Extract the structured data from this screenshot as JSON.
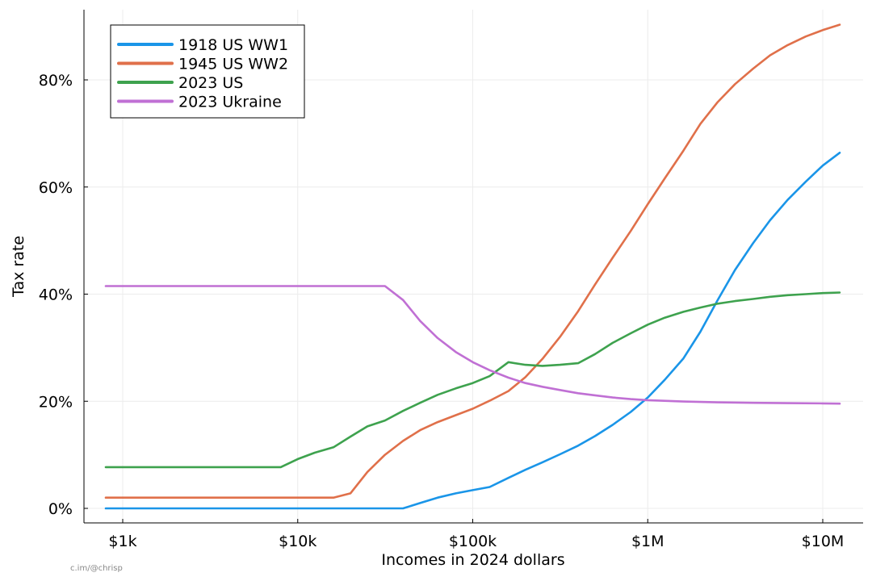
{
  "chart_data": {
    "type": "line",
    "xlabel": "Incomes in 2024 dollars",
    "ylabel": "Tax rate",
    "x_scale": "log",
    "xlim": [
      610,
      15000000
    ],
    "ylim": [
      -2.5,
      93
    ],
    "x_ticks": [
      {
        "value": 1000,
        "label": "$1k"
      },
      {
        "value": 10000,
        "label": "$10k"
      },
      {
        "value": 100000,
        "label": "$100k"
      },
      {
        "value": 1000000,
        "label": "$1M"
      },
      {
        "value": 10000000,
        "label": "$10M"
      }
    ],
    "y_ticks": [
      {
        "value": 0,
        "label": "0%"
      },
      {
        "value": 20,
        "label": "20%"
      },
      {
        "value": 40,
        "label": "40%"
      },
      {
        "value": 60,
        "label": "60%"
      },
      {
        "value": 80,
        "label": "80%"
      }
    ],
    "grid": true,
    "legend_position": "top-left",
    "series": [
      {
        "name": "1918 US WW1",
        "color": "#1a95e8",
        "x": [
          800,
          10000,
          20000,
          40000,
          50000,
          63000,
          80000,
          100000,
          125000,
          160000,
          200000,
          250000,
          315000,
          400000,
          500000,
          630000,
          800000,
          1000000,
          1250000,
          1600000,
          2000000,
          2500000,
          3150000,
          4000000,
          5000000,
          6300000,
          8000000,
          10000000,
          12500000
        ],
        "y": [
          0,
          0,
          0,
          0,
          1,
          2,
          2.8,
          3.4,
          4,
          5.7,
          7.2,
          8.6,
          10.1,
          11.7,
          13.5,
          15.6,
          18,
          20.7,
          24,
          28,
          33,
          38.8,
          44.5,
          49.5,
          53.8,
          57.6,
          61,
          64,
          66.4
        ]
      },
      {
        "name": "1945 US WW2",
        "color": "#e0704a",
        "x": [
          800,
          10000,
          16000,
          20000,
          25000,
          31500,
          40000,
          50000,
          63000,
          80000,
          100000,
          125000,
          160000,
          200000,
          250000,
          315000,
          400000,
          500000,
          630000,
          800000,
          1000000,
          1250000,
          1600000,
          2000000,
          2500000,
          3150000,
          4000000,
          5000000,
          6300000,
          8000000,
          10000000,
          12500000
        ],
        "y": [
          2,
          2,
          2,
          2.8,
          6.8,
          10,
          12.6,
          14.6,
          16.1,
          17.4,
          18.6,
          20.1,
          21.9,
          24.5,
          27.9,
          32,
          36.8,
          41.8,
          46.8,
          51.8,
          56.8,
          61.6,
          66.8,
          71.8,
          75.8,
          79.2,
          82.1,
          84.6,
          86.5,
          88.1,
          89.3,
          90.3
        ]
      },
      {
        "name": "2023 US",
        "color": "#3ea24e",
        "x": [
          800,
          8000,
          10000,
          12500,
          16000,
          20000,
          25000,
          31500,
          40000,
          50000,
          63000,
          80000,
          100000,
          125000,
          160000,
          200000,
          250000,
          315000,
          400000,
          500000,
          630000,
          800000,
          1000000,
          1250000,
          1600000,
          2000000,
          2500000,
          3150000,
          4000000,
          5000000,
          6300000,
          8000000,
          10000000,
          12500000
        ],
        "y": [
          7.7,
          7.7,
          9.2,
          10.4,
          11.4,
          13.4,
          15.3,
          16.4,
          18.2,
          19.7,
          21.2,
          22.4,
          23.4,
          24.7,
          27.3,
          26.8,
          26.6,
          26.8,
          27.1,
          28.8,
          30.9,
          32.7,
          34.3,
          35.6,
          36.7,
          37.5,
          38.2,
          38.7,
          39.1,
          39.5,
          39.8,
          40,
          40.2,
          40.3
        ]
      },
      {
        "name": "2023 Ukraine",
        "color": "#c070d4",
        "x": [
          800,
          10000,
          20000,
          31500,
          40000,
          50000,
          63000,
          80000,
          100000,
          125000,
          160000,
          200000,
          250000,
          315000,
          400000,
          500000,
          630000,
          800000,
          1000000,
          1600000,
          2500000,
          4000000,
          6300000,
          10000000,
          12500000
        ],
        "y": [
          41.5,
          41.5,
          41.5,
          41.5,
          38.9,
          35,
          31.8,
          29.2,
          27.3,
          25.8,
          24.4,
          23.4,
          22.7,
          22.1,
          21.5,
          21.1,
          20.7,
          20.4,
          20.2,
          19.95,
          19.8,
          19.7,
          19.65,
          19.6,
          19.55
        ]
      }
    ]
  },
  "credit": "c.im/@chrisp"
}
